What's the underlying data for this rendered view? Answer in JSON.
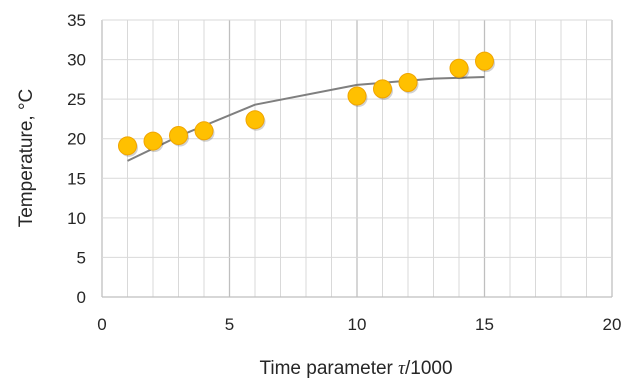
{
  "chart_data": {
    "type": "scatter",
    "title": "",
    "xlabel_prefix": "Time parameter ",
    "xlabel_symbol": "τ",
    "xlabel_suffix": "/1000",
    "ylabel": "Temperature, °C",
    "xlim": [
      0,
      20
    ],
    "ylim": [
      0,
      35
    ],
    "x_ticks": [
      0,
      5,
      10,
      15,
      20
    ],
    "y_ticks": [
      0,
      5,
      10,
      15,
      20,
      25,
      30,
      35
    ],
    "grid": true,
    "legend": "none",
    "series": [
      {
        "type": "scatter",
        "color": "#FFC000",
        "edge_color": "#F0A500",
        "points": [
          {
            "x": 1,
            "y": 19.1
          },
          {
            "x": 2,
            "y": 19.7
          },
          {
            "x": 3,
            "y": 20.4
          },
          {
            "x": 4,
            "y": 21.0
          },
          {
            "x": 6,
            "y": 22.4
          },
          {
            "x": 10,
            "y": 25.4
          },
          {
            "x": 11,
            "y": 26.3
          },
          {
            "x": 12,
            "y": 27.1
          },
          {
            "x": 14,
            "y": 28.9
          },
          {
            "x": 15,
            "y": 29.8
          }
        ]
      },
      {
        "type": "line",
        "color": "#7F7F7F",
        "points": [
          {
            "x": 1,
            "y": 17.2
          },
          {
            "x": 3,
            "y": 20.3
          },
          {
            "x": 6,
            "y": 24.3
          },
          {
            "x": 10,
            "y": 26.8
          },
          {
            "x": 13,
            "y": 27.6
          },
          {
            "x": 15,
            "y": 27.8
          }
        ]
      }
    ],
    "colors": {
      "grid": "#D9D9D9",
      "axis": "#BFBFBF",
      "text": "#262626"
    }
  }
}
